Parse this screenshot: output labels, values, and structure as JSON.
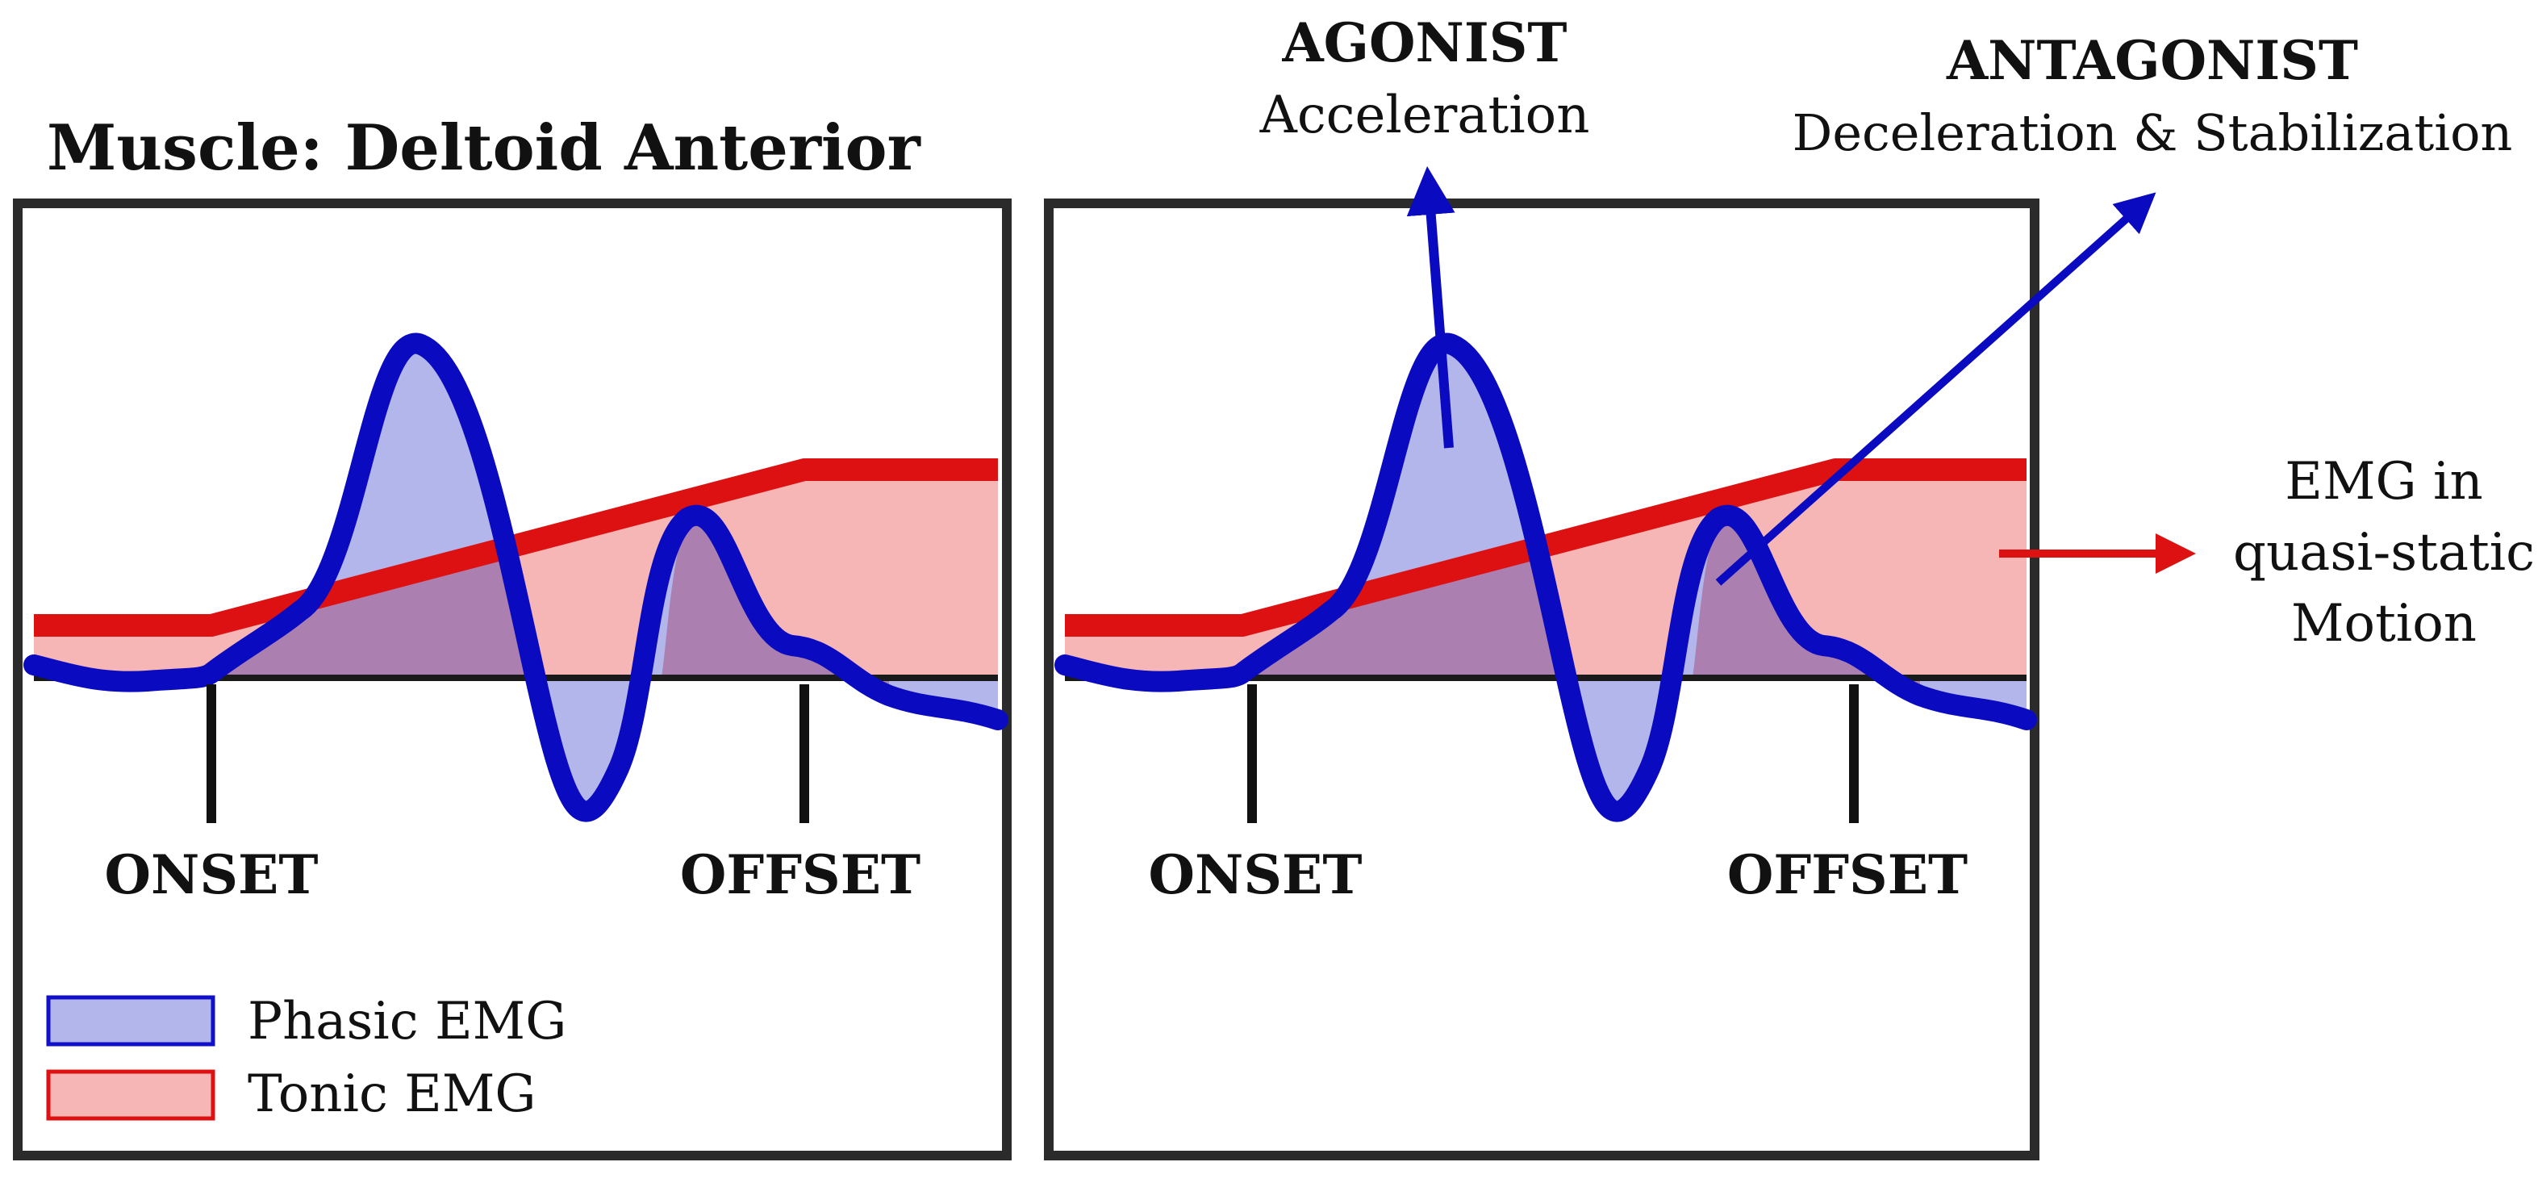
{
  "title": "Muscle: Deltoid Anterior",
  "panels": [
    {
      "id": "left",
      "onset_label": "ONSET",
      "offset_label": "OFFSET"
    },
    {
      "id": "right",
      "onset_label": "ONSET",
      "offset_label": "OFFSET"
    }
  ],
  "legend": {
    "items": [
      {
        "label": "Phasic EMG",
        "fill": "#b3b6ea",
        "stroke": "#1010c8"
      },
      {
        "label": "Tonic EMG",
        "fill": "#f7b6b6",
        "stroke": "#dd1111"
      }
    ]
  },
  "annotations": {
    "agonist": {
      "title": "AGONIST",
      "subtitle": "Acceleration"
    },
    "antagonist": {
      "title": "ANTAGONIST",
      "subtitle": "Deceleration & Stabilization"
    },
    "quasi_static": {
      "lines": [
        "EMG in",
        "quasi-static",
        "Motion"
      ]
    }
  },
  "colors": {
    "phasic_stroke": "#0a0ac0",
    "phasic_fill": "#b3b6ea",
    "tonic_stroke": "#dd1111",
    "tonic_fill": "#f7b6b6",
    "overlap_fill": "#aa7aab",
    "frame": "#2b2b2b",
    "baseline": "#1a1a1a",
    "annotation_arrow_blue": "#0a0ac0",
    "annotation_arrow_red": "#dd1111"
  }
}
